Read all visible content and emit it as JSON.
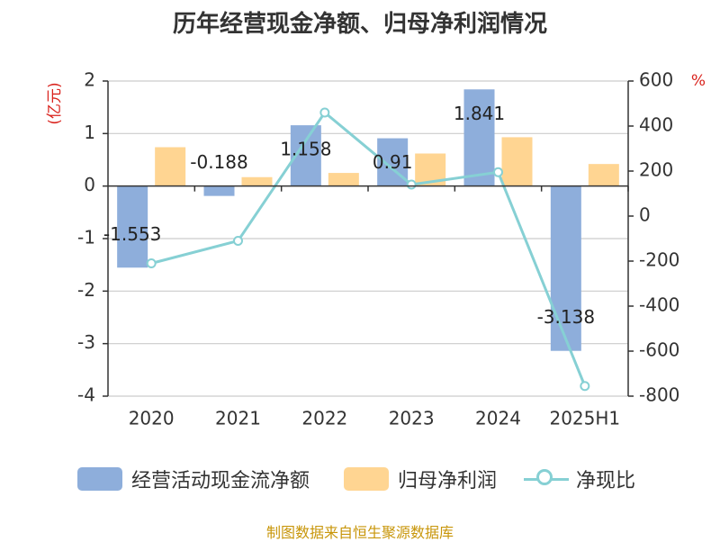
{
  "title": "历年经营现金净额、归母净利润情况",
  "source": "制图数据来自恒生聚源数据库",
  "colors": {
    "cash_flow": "#8eaedb",
    "net_profit": "#ffd592",
    "ratio": "#86d0d4",
    "unit_red": "#d9221c",
    "source_text": "#c8960a"
  },
  "chart_data": {
    "type": "bar",
    "categories": [
      "2020",
      "2021",
      "2022",
      "2023",
      "2024",
      "2025H1"
    ],
    "y_left": {
      "label": "(亿元)",
      "ylim": [
        -4,
        2
      ],
      "ticks": [
        2,
        1,
        0,
        -1,
        -2,
        -3,
        -4
      ]
    },
    "y_right": {
      "label": "%",
      "ylim": [
        -800,
        600
      ],
      "ticks": [
        600,
        400,
        200,
        0,
        -200,
        -400,
        -600,
        -800
      ]
    },
    "series": [
      {
        "name": "经营活动现金流净额",
        "type": "bar",
        "axis": "left",
        "values": [
          -1.553,
          -0.188,
          1.158,
          0.91,
          1.841,
          -3.138
        ],
        "labels": [
          "-1.553",
          "-0.188",
          "1.158",
          "0.91",
          "1.841",
          "-3.138"
        ]
      },
      {
        "name": "归母净利润",
        "type": "bar",
        "axis": "left",
        "values": [
          0.74,
          0.17,
          0.25,
          0.62,
          0.93,
          0.42
        ]
      },
      {
        "name": "净现比",
        "type": "line",
        "axis": "right",
        "values": [
          -210,
          -110,
          460,
          140,
          195,
          -755
        ]
      }
    ],
    "grid": true,
    "legend": "bottom"
  }
}
